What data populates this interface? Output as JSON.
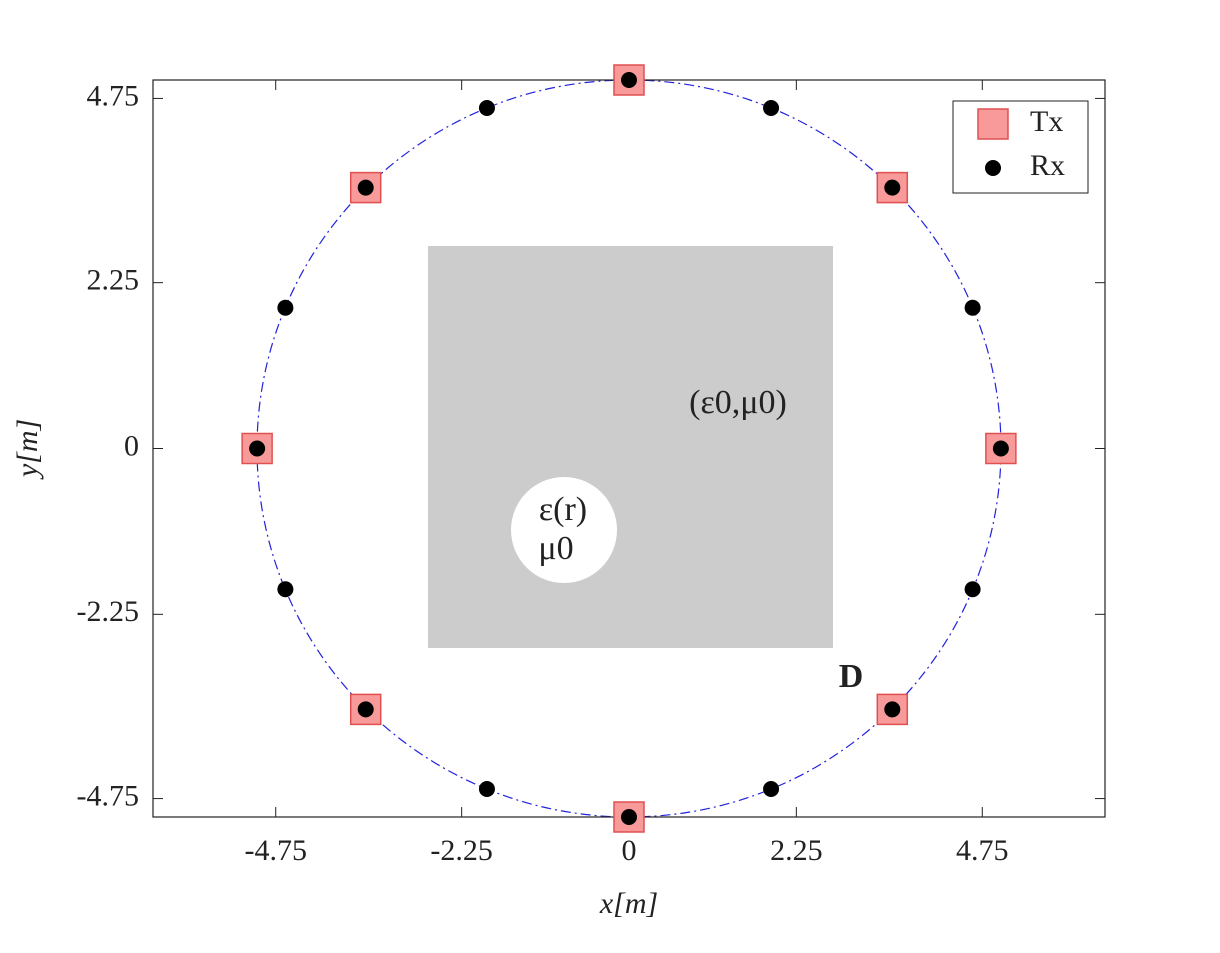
{
  "chart_data": {
    "type": "scatter",
    "xlabel": "x[m]",
    "ylabel": "y[m]",
    "xlim": [
      -6.4,
      6.4
    ],
    "ylim": [
      -5,
      5
    ],
    "xticks": [
      -4.75,
      -2.25,
      0,
      2.25,
      4.75
    ],
    "yticks": [
      -4.75,
      -2.25,
      0,
      2.25,
      4.75
    ],
    "legend": "northeast",
    "annotations": [
      "(ε0,μ0)",
      "ε(r)",
      "μ0",
      "D"
    ],
    "series": [
      {
        "name": "Tx",
        "color": "#f99a9a",
        "marker": "square",
        "x": [
          5,
          3.54,
          0,
          -3.54,
          -5,
          -3.54,
          0,
          3.54
        ],
        "values": [
          0,
          3.54,
          5,
          3.54,
          0,
          -3.54,
          -5,
          -3.54
        ]
      },
      {
        "name": "Rx",
        "color": "#000000",
        "marker": "circle",
        "x": [
          5,
          4.62,
          3.54,
          1.91,
          0,
          -1.91,
          -3.54,
          -4.62,
          -5,
          -4.62,
          -3.54,
          -1.91,
          0,
          1.91,
          3.54,
          4.62
        ],
        "values": [
          0,
          1.91,
          3.54,
          4.62,
          5,
          4.62,
          3.54,
          1.91,
          0,
          -1.91,
          -3.54,
          -4.62,
          -5,
          -4.62,
          -3.54,
          -1.91
        ]
      }
    ]
  }
}
